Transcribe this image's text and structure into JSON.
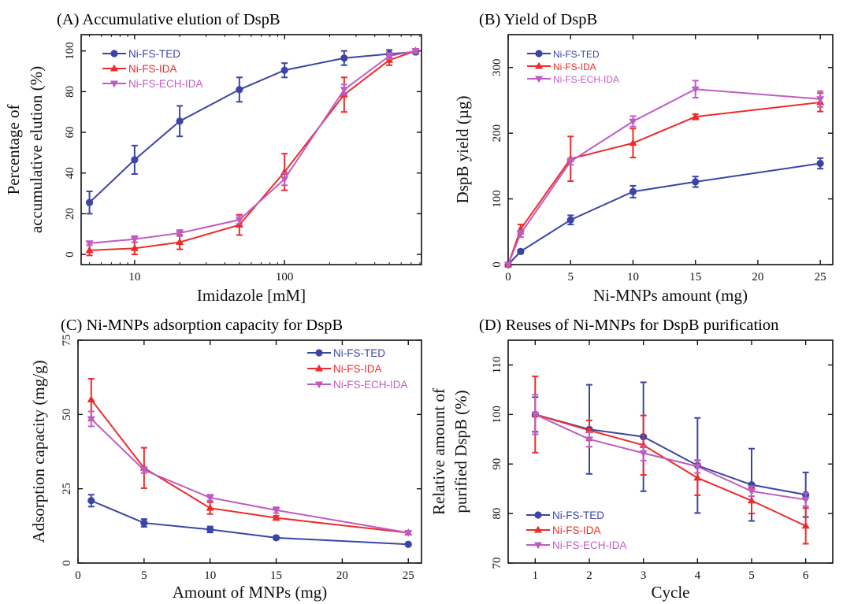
{
  "colors": {
    "Ni-FS-TED": "#3a45a6",
    "Ni-FS-IDA": "#ef2a2a",
    "Ni-FS-ECH-IDA": "#bf5cc2"
  },
  "markers": {
    "Ni-FS-TED": "circle",
    "Ni-FS-IDA": "triangle-up",
    "Ni-FS-ECH-IDA": "triangle-down"
  },
  "chart_data": [
    {
      "id": "A",
      "type": "line",
      "title": "(A) Accumulative elution of DspB",
      "xlabel": "Imidazole [mM]",
      "ylabel": [
        "Percentage of",
        "accumulative elution (%)"
      ],
      "xscale": "log",
      "xlim": [
        4.4,
        820
      ],
      "ylim": [
        -5,
        108
      ],
      "xticks": [
        10,
        100
      ],
      "xtick_labels": [
        "10",
        "100"
      ],
      "yticks": [
        0,
        20,
        40,
        60,
        80,
        100
      ],
      "legend": "top-left",
      "series": [
        {
          "name": "Ni-FS-TED",
          "x": [
            5,
            10,
            20,
            50,
            100,
            250,
            500,
            750
          ],
          "y": [
            25.5,
            46.5,
            65.5,
            81,
            90.5,
            96.5,
            98.5,
            99.5
          ],
          "err": [
            5.5,
            7,
            7.5,
            6,
            3.5,
            3.5,
            2,
            1
          ]
        },
        {
          "name": "Ni-FS-IDA",
          "x": [
            5,
            10,
            20,
            50,
            100,
            250,
            500,
            750
          ],
          "y": [
            2,
            3,
            6,
            14.5,
            40.5,
            78.5,
            95.5,
            100
          ],
          "err": [
            2.5,
            3,
            3.5,
            5,
            9,
            8.5,
            2.5,
            1
          ]
        },
        {
          "name": "Ni-FS-ECH-IDA",
          "x": [
            5,
            10,
            20,
            50,
            100,
            250,
            500,
            750
          ],
          "y": [
            5.5,
            7.5,
            10.5,
            17,
            37,
            81,
            97.5,
            100
          ],
          "err": [
            1,
            1.5,
            1.5,
            2,
            3,
            2.5,
            1.5,
            1
          ]
        }
      ]
    },
    {
      "id": "B",
      "type": "line",
      "title": "(B) Yield of DspB",
      "xlabel": "Ni-MNPs amount (mg)",
      "ylabel": [
        "DspB yield (µg)"
      ],
      "xscale": "linear",
      "xlim": [
        0,
        26
      ],
      "ylim": [
        0,
        350
      ],
      "xticks": [
        0,
        5,
        10,
        15,
        20,
        25
      ],
      "yticks": [
        0,
        100,
        200,
        300
      ],
      "legend": "top-left",
      "series": [
        {
          "name": "Ni-FS-TED",
          "x": [
            0,
            1,
            5,
            10,
            15,
            25
          ],
          "y": [
            0,
            20,
            68,
            111,
            126,
            154
          ],
          "err": [
            0,
            3,
            7,
            9,
            8,
            8
          ]
        },
        {
          "name": "Ni-FS-IDA",
          "x": [
            0,
            1,
            5,
            10,
            15,
            25
          ],
          "y": [
            0,
            54,
            161,
            185,
            225,
            247
          ],
          "err": [
            0,
            7,
            34,
            22,
            4,
            14
          ]
        },
        {
          "name": "Ni-FS-ECH-IDA",
          "x": [
            0,
            1,
            5,
            10,
            15,
            25
          ],
          "y": [
            0,
            47,
            157,
            218,
            267,
            252
          ],
          "err": [
            0,
            5,
            5,
            8,
            13,
            12
          ]
        }
      ]
    },
    {
      "id": "C",
      "type": "line",
      "title": "(C) Ni-MNPs adsorption capacity for DspB",
      "xlabel": "Amount of MNPs (mg)",
      "ylabel": [
        "Adsorption capacity (mg/g)"
      ],
      "xscale": "linear",
      "xlim": [
        0,
        26
      ],
      "ylim": [
        0,
        75
      ],
      "xticks": [
        0,
        5,
        10,
        15,
        20,
        25
      ],
      "yticks": [
        0,
        25,
        50,
        75
      ],
      "legend": "top-right",
      "series": [
        {
          "name": "Ni-FS-TED",
          "x": [
            1,
            5,
            10,
            15,
            25
          ],
          "y": [
            21,
            13.5,
            11.3,
            8.5,
            6.3
          ],
          "err": [
            2,
            1.3,
            1,
            0.6,
            0.5
          ]
        },
        {
          "name": "Ni-FS-IDA",
          "x": [
            1,
            5,
            10,
            15,
            25
          ],
          "y": [
            55,
            32,
            18.5,
            15.2,
            10.2
          ],
          "err": [
            7,
            6.8,
            2,
            0.7,
            0.6
          ]
        },
        {
          "name": "Ni-FS-ECH-IDA",
          "x": [
            1,
            5,
            10,
            15,
            25
          ],
          "y": [
            48.5,
            31.3,
            22,
            17.8,
            10.2
          ],
          "err": [
            2.5,
            1,
            1,
            1,
            0.6
          ]
        }
      ]
    },
    {
      "id": "D",
      "type": "line",
      "title": "(D) Reuses of Ni-MNPs for DspB purification",
      "xlabel": "Cycle",
      "ylabel": [
        "Relative amount of",
        "purified DspB (%)"
      ],
      "xscale": "linear",
      "xlim": [
        0.5,
        6.5
      ],
      "ylim": [
        70,
        115
      ],
      "xticks": [
        1,
        2,
        3,
        4,
        5,
        6
      ],
      "yticks": [
        70,
        80,
        90,
        100,
        110
      ],
      "legend": "bottom-left",
      "series": [
        {
          "name": "Ni-FS-TED",
          "x": [
            1,
            2,
            3,
            4,
            5,
            6
          ],
          "y": [
            100,
            97,
            95.5,
            89.7,
            85.8,
            83.8
          ],
          "err": [
            3.5,
            9,
            11,
            9.6,
            7.3,
            4.5
          ]
        },
        {
          "name": "Ni-FS-IDA",
          "x": [
            1,
            2,
            3,
            4,
            5,
            6
          ],
          "y": [
            100,
            96.8,
            93.8,
            87.2,
            82.6,
            77.5
          ],
          "err": [
            7.7,
            2,
            6,
            3.5,
            2.6,
            3.6
          ]
        },
        {
          "name": "Ni-FS-ECH-IDA",
          "x": [
            1,
            2,
            3,
            4,
            5,
            6
          ],
          "y": [
            100,
            95,
            92.2,
            89.5,
            84.5,
            82.8
          ],
          "err": [
            4,
            1.5,
            1.5,
            1.3,
            1,
            1.3
          ]
        }
      ]
    }
  ]
}
